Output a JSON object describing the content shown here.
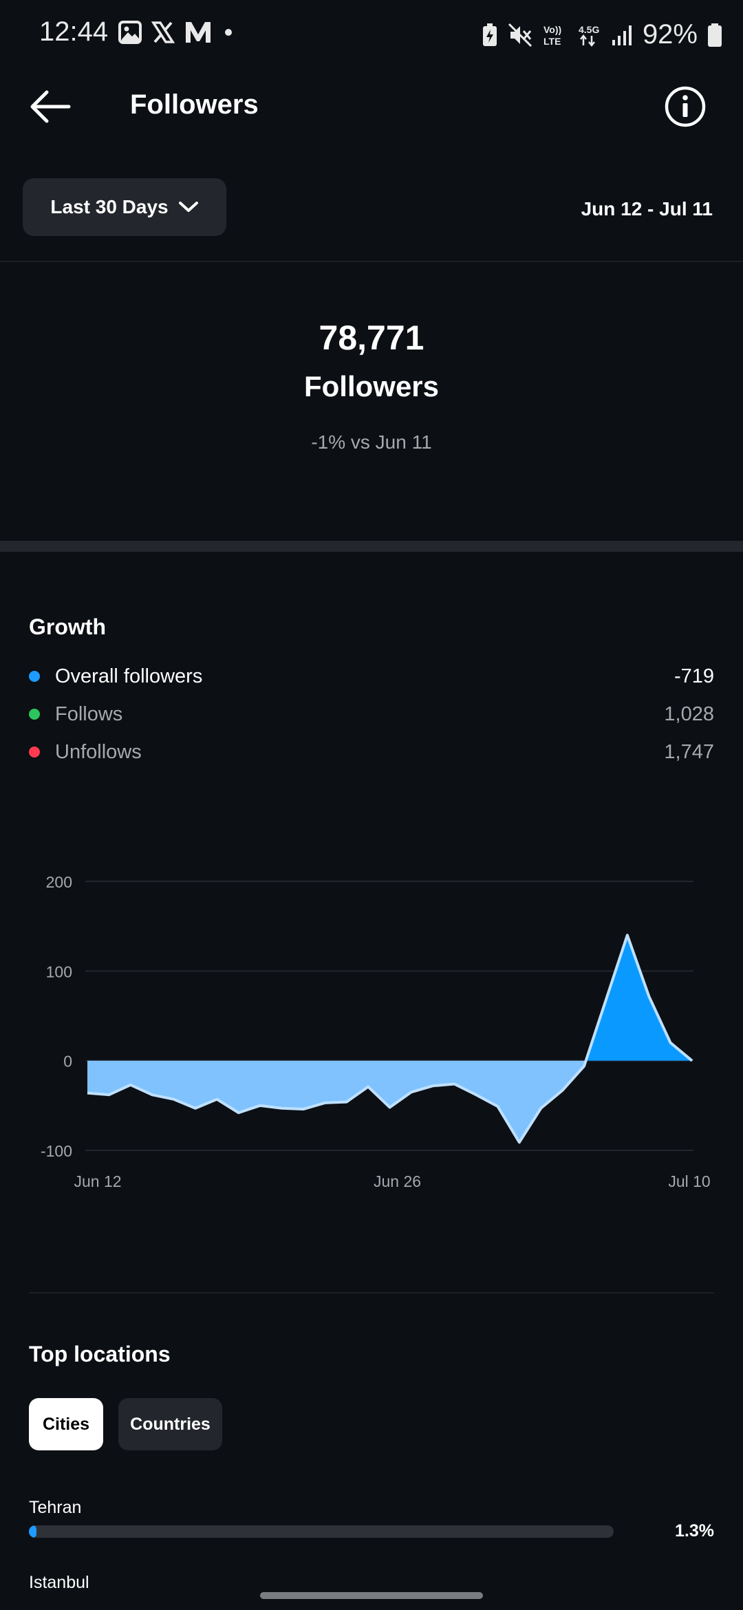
{
  "status_bar": {
    "time": "12:44",
    "battery": "92%",
    "left_icons": [
      "gallery-icon",
      "x-icon",
      "medium-icon",
      "dot-icon"
    ],
    "right_icons": [
      "battery-saver-icon",
      "mute-icon",
      "volte-icon",
      "4.5g-icon",
      "signal-icon",
      "battery-icon"
    ],
    "volte_text": "Vo)) LTE",
    "net_text": "4.5G"
  },
  "header": {
    "title": "Followers"
  },
  "filter": {
    "range_label": "Last 30 Days",
    "date_range": "Jun 12 - Jul 11"
  },
  "summary": {
    "count": "78,771",
    "label": "Followers",
    "comparison": "-1% vs Jun 11"
  },
  "growth": {
    "title": "Growth",
    "legend": [
      {
        "name": "Overall followers",
        "value": "-719",
        "color": "#1e9bff"
      },
      {
        "name": "Follows",
        "value": "1,028",
        "color": "#2cc65c"
      },
      {
        "name": "Unfollows",
        "value": "1,747",
        "color": "#ff3b52"
      }
    ]
  },
  "chart_data": {
    "type": "area",
    "title": "",
    "xlabel": "",
    "ylabel": "",
    "ylim": [
      -100,
      200
    ],
    "y_ticks": [
      "200",
      "100",
      "0",
      "-100"
    ],
    "x_tick_labels": [
      "Jun 12",
      "Jun 26",
      "Jul 10"
    ],
    "x": [
      "Jun 12",
      "Jun 13",
      "Jun 14",
      "Jun 15",
      "Jun 16",
      "Jun 17",
      "Jun 18",
      "Jun 19",
      "Jun 20",
      "Jun 21",
      "Jun 22",
      "Jun 23",
      "Jun 24",
      "Jun 25",
      "Jun 26",
      "Jun 27",
      "Jun 28",
      "Jun 29",
      "Jun 30",
      "Jul 1",
      "Jul 2",
      "Jul 3",
      "Jul 4",
      "Jul 5",
      "Jul 6",
      "Jul 7",
      "Jul 8",
      "Jul 9",
      "Jul 10"
    ],
    "series": [
      {
        "values": [
          -36,
          -38,
          -27,
          -38,
          -43,
          -53,
          -43,
          -58,
          -50,
          -53,
          -54,
          -47,
          -46,
          -29,
          -52,
          -35,
          -28,
          -26,
          -38,
          -51,
          -91,
          -53,
          -33,
          -6,
          67,
          140,
          72,
          20,
          0
        ]
      }
    ],
    "grid": true,
    "colors": {
      "positive": "#0a9aff",
      "negative": "#7fc2fd",
      "line": "#bfe0ff"
    }
  },
  "locations": {
    "title": "Top locations",
    "tabs": [
      "Cities",
      "Countries"
    ],
    "items": [
      {
        "name": "Tehran",
        "percent": "1.3%",
        "fraction": 0.013
      },
      {
        "name": "Istanbul"
      }
    ]
  }
}
